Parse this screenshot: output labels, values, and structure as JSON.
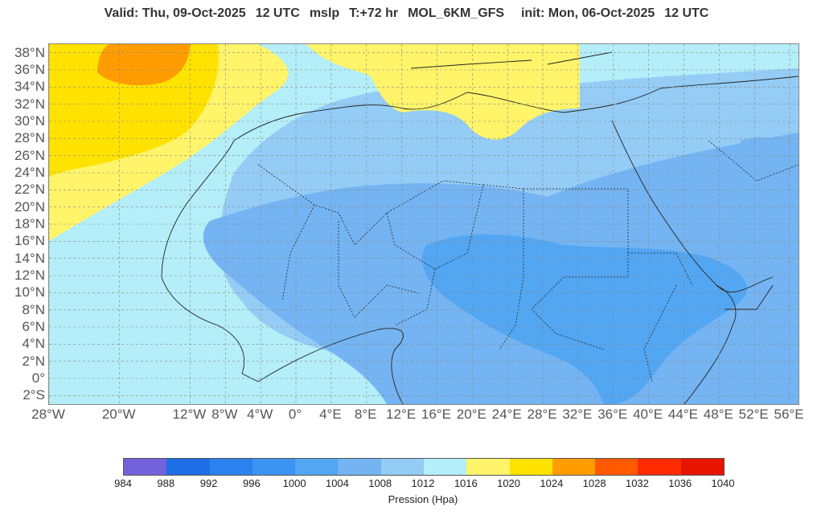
{
  "title": {
    "valid": "Valid: Thu, 09-Oct-2025",
    "valid_hour": "12 UTC",
    "variable": "mslp",
    "lead": "T:+72 hr",
    "model": "MOL_6KM_GFS",
    "init": "init: Mon, 06-Oct-2025",
    "init_hour": "12 UTC"
  },
  "lat_labels": [
    "38°N",
    "36°N",
    "34°N",
    "32°N",
    "30°N",
    "28°N",
    "26°N",
    "24°N",
    "22°N",
    "20°N",
    "18°N",
    "16°N",
    "14°N",
    "12°N",
    "10°N",
    "8°N",
    "6°N",
    "4°N",
    "2°N",
    "0°",
    "2°S"
  ],
  "lon_labels": [
    {
      "t": "28°W",
      "lon": -28
    },
    {
      "t": "20°W",
      "lon": -20
    },
    {
      "t": "12°W",
      "lon": -12
    },
    {
      "t": "8°W",
      "lon": -8
    },
    {
      "t": "4°W",
      "lon": -4
    },
    {
      "t": "0°",
      "lon": 0
    },
    {
      "t": "4°E",
      "lon": 4
    },
    {
      "t": "8°E",
      "lon": 8
    },
    {
      "t": "12°E",
      "lon": 12
    },
    {
      "t": "16°E",
      "lon": 16
    },
    {
      "t": "20°E",
      "lon": 20
    },
    {
      "t": "24°E",
      "lon": 24
    },
    {
      "t": "28°E",
      "lon": 28
    },
    {
      "t": "32°E",
      "lon": 32
    },
    {
      "t": "36°E",
      "lon": 36
    },
    {
      "t": "40°E",
      "lon": 40
    },
    {
      "t": "44°E",
      "lon": 44
    },
    {
      "t": "48°E",
      "lon": 48
    },
    {
      "t": "52°E",
      "lon": 52
    },
    {
      "t": "56°E",
      "lon": 56
    }
  ],
  "colorbar": {
    "colors": [
      "#7462dc",
      "#1e6ee8",
      "#2b82ee",
      "#3c94f2",
      "#52a6f2",
      "#74b4f2",
      "#94ccf6",
      "#b4eef8",
      "#fff46a",
      "#ffe200",
      "#ff9c00",
      "#ff5a00",
      "#ff2a00",
      "#e61400"
    ],
    "ticks": [
      "984",
      "988",
      "992",
      "996",
      "1000",
      "1004",
      "1008",
      "1012",
      "1016",
      "1020",
      "1024",
      "1028",
      "1032",
      "1036",
      "1040"
    ],
    "label": "Pression (Hpa)"
  }
}
